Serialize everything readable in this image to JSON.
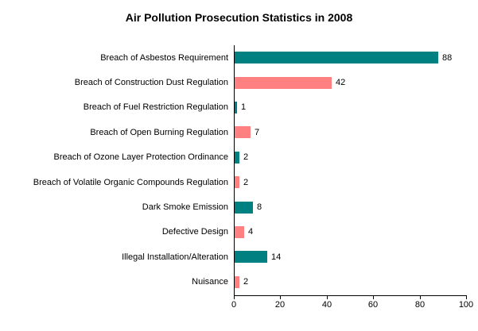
{
  "chart_data": {
    "type": "bar",
    "orientation": "horizontal",
    "title": "Air Pollution Prosecution Statistics in 2008",
    "categories": [
      "Breach of Asbestos Requirement",
      "Breach of Construction Dust Regulation",
      "Breach of Fuel Restriction Regulation",
      "Breach of Open Burning Regulation",
      "Breach of Ozone Layer Protection Ordinance",
      "Breach of Volatile Organic Compounds Regulation",
      "Dark Smoke Emission",
      "Defective Design",
      "Illegal Installation/Alteration",
      "Nuisance"
    ],
    "values": [
      88,
      42,
      1,
      7,
      2,
      2,
      8,
      4,
      14,
      2
    ],
    "bar_colors": [
      "#008080",
      "#FF8080",
      "#008080",
      "#FF8080",
      "#008080",
      "#FF8080",
      "#008080",
      "#FF8080",
      "#008080",
      "#FF8080"
    ],
    "value_labels": [
      "88",
      "42",
      "1",
      "7",
      "2",
      "2",
      "8",
      "4",
      "14",
      "2"
    ],
    "xlabel": "",
    "ylabel": "",
    "xlim": [
      0,
      100
    ],
    "x_ticks": [
      0,
      20,
      40,
      60,
      80,
      100
    ],
    "x_tick_labels": [
      "0",
      "20",
      "40",
      "60",
      "80",
      "100"
    ],
    "grid": false,
    "legend": false
  },
  "colors": {
    "teal": "#008080",
    "salmon": "#FF8080",
    "axis": "#000000",
    "text": "#000000",
    "background": "#FFFFFF"
  }
}
